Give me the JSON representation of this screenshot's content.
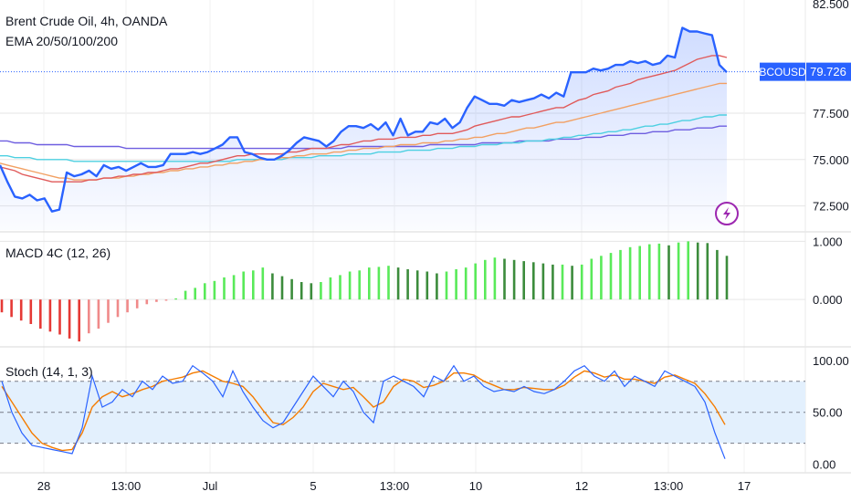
{
  "colors": {
    "price": "#2962ff",
    "ema20": "#e05a5a",
    "ema50": "#f2a062",
    "ema100": "#4dd0e1",
    "ema200": "#6e5ee0",
    "macd_pos_strong": "#59ea59",
    "macd_pos_weak": "#3c8c3c",
    "macd_neg_strong": "#e53935",
    "macd_neg_weak": "#f08a8a",
    "stoch_k": "#2962ff",
    "stoch_d": "#f57c00",
    "stoch_band": "#e3f0fd",
    "lightning": "#9c27b0",
    "grid": "#e6e6e6"
  },
  "chart_data": [
    {
      "type": "area",
      "title": "Brent Crude Oil, 4h, OANDA",
      "subtitle": "EMA 20/50/100/200",
      "ylim": [
        71.2,
        83.5
      ],
      "yticks": [
        "72.500",
        "75.000",
        "77.500"
      ],
      "top_tick_partial": "82.500",
      "last_price": {
        "symbol": "BCOUSD",
        "value": "79.726",
        "y": 79.73
      },
      "icon": "lightning-icon",
      "series": [
        {
          "name": "price",
          "values": [
            74.7,
            73.8,
            73.0,
            72.9,
            73.1,
            72.8,
            72.9,
            72.2,
            72.3,
            74.3,
            74.1,
            74.2,
            74.4,
            74.1,
            74.7,
            74.5,
            74.6,
            74.4,
            74.6,
            74.8,
            74.6,
            74.6,
            74.7,
            75.3,
            75.3,
            75.3,
            75.4,
            75.3,
            75.4,
            75.6,
            75.8,
            76.2,
            76.2,
            75.4,
            75.3,
            75.1,
            75.0,
            75.0,
            75.2,
            75.5,
            75.9,
            76.2,
            76.1,
            76.0,
            75.7,
            76.0,
            76.5,
            76.8,
            76.8,
            76.7,
            76.9,
            76.6,
            77.0,
            76.3,
            77.2,
            76.3,
            76.5,
            76.5,
            77.0,
            76.9,
            77.2,
            76.7,
            77.0,
            77.8,
            78.4,
            78.2,
            78.0,
            78.0,
            77.9,
            78.2,
            78.1,
            78.2,
            78.3,
            78.5,
            78.3,
            78.6,
            78.4,
            79.7,
            79.7,
            79.7,
            79.9,
            79.8,
            79.9,
            80.1,
            80.1,
            80.3,
            80.2,
            80.3,
            80.1,
            80.2,
            80.6,
            80.5,
            82.1,
            81.9,
            81.9,
            81.8,
            81.7,
            80.1,
            79.7
          ]
        },
        {
          "name": "EMA 20",
          "values": [
            74.6,
            74.5,
            74.4,
            74.2,
            74.1,
            74.0,
            73.9,
            73.8,
            73.8,
            73.8,
            73.8,
            73.8,
            73.9,
            73.9,
            74.0,
            74.0,
            74.1,
            74.1,
            74.2,
            74.2,
            74.3,
            74.3,
            74.4,
            74.5,
            74.5,
            74.6,
            74.7,
            74.8,
            74.8,
            74.9,
            75.0,
            75.1,
            75.2,
            75.2,
            75.3,
            75.3,
            75.3,
            75.3,
            75.3,
            75.4,
            75.4,
            75.5,
            75.6,
            75.6,
            75.6,
            75.7,
            75.8,
            75.8,
            75.9,
            76.0,
            76.0,
            76.1,
            76.1,
            76.1,
            76.2,
            76.2,
            76.2,
            76.3,
            76.3,
            76.4,
            76.4,
            76.4,
            76.5,
            76.6,
            76.8,
            76.9,
            77.0,
            77.1,
            77.2,
            77.3,
            77.3,
            77.4,
            77.5,
            77.6,
            77.7,
            77.8,
            77.8,
            78.0,
            78.2,
            78.3,
            78.5,
            78.6,
            78.7,
            78.9,
            79.0,
            79.1,
            79.3,
            79.4,
            79.5,
            79.6,
            79.7,
            79.8,
            80.0,
            80.2,
            80.4,
            80.5,
            80.6,
            80.6,
            80.5
          ]
        },
        {
          "name": "EMA 50",
          "values": [
            74.8,
            74.7,
            74.6,
            74.5,
            74.4,
            74.3,
            74.2,
            74.1,
            74.0,
            74.0,
            73.9,
            73.9,
            73.9,
            73.9,
            74.0,
            74.0,
            74.0,
            74.1,
            74.1,
            74.2,
            74.2,
            74.3,
            74.3,
            74.4,
            74.4,
            74.5,
            74.5,
            74.6,
            74.6,
            74.7,
            74.7,
            74.8,
            74.8,
            74.9,
            74.9,
            75.0,
            75.0,
            75.0,
            75.1,
            75.1,
            75.2,
            75.2,
            75.3,
            75.3,
            75.3,
            75.4,
            75.4,
            75.5,
            75.5,
            75.6,
            75.6,
            75.6,
            75.7,
            75.7,
            75.8,
            75.8,
            75.8,
            75.9,
            75.9,
            75.9,
            76.0,
            76.0,
            76.1,
            76.1,
            76.2,
            76.2,
            76.3,
            76.4,
            76.4,
            76.5,
            76.6,
            76.7,
            76.7,
            76.8,
            76.9,
            77.0,
            77.0,
            77.1,
            77.2,
            77.3,
            77.4,
            77.5,
            77.6,
            77.7,
            77.8,
            77.9,
            78.0,
            78.1,
            78.2,
            78.3,
            78.4,
            78.5,
            78.6,
            78.7,
            78.8,
            78.9,
            79.0,
            79.1,
            79.1
          ]
        },
        {
          "name": "EMA 100",
          "values": [
            75.2,
            75.2,
            75.1,
            75.1,
            75.1,
            75.0,
            75.0,
            75.0,
            75.0,
            75.0,
            74.9,
            74.9,
            74.9,
            74.9,
            74.9,
            74.9,
            74.9,
            74.9,
            74.9,
            74.9,
            74.9,
            74.9,
            74.9,
            74.9,
            74.9,
            74.9,
            74.9,
            74.9,
            74.9,
            74.9,
            74.9,
            74.9,
            75.0,
            75.0,
            75.0,
            75.0,
            75.0,
            75.0,
            75.0,
            75.1,
            75.1,
            75.1,
            75.1,
            75.2,
            75.2,
            75.2,
            75.2,
            75.3,
            75.3,
            75.3,
            75.3,
            75.4,
            75.4,
            75.4,
            75.4,
            75.5,
            75.5,
            75.5,
            75.5,
            75.6,
            75.6,
            75.6,
            75.7,
            75.7,
            75.7,
            75.8,
            75.8,
            75.8,
            75.9,
            75.9,
            75.9,
            76.0,
            76.0,
            76.0,
            76.1,
            76.1,
            76.2,
            76.2,
            76.3,
            76.3,
            76.4,
            76.4,
            76.5,
            76.5,
            76.6,
            76.6,
            76.7,
            76.8,
            76.8,
            76.9,
            76.9,
            77.0,
            77.1,
            77.1,
            77.2,
            77.3,
            77.3,
            77.4,
            77.4
          ]
        },
        {
          "name": "EMA 200",
          "values": [
            76.0,
            76.0,
            75.9,
            75.9,
            75.9,
            75.8,
            75.8,
            75.8,
            75.8,
            75.8,
            75.7,
            75.7,
            75.7,
            75.7,
            75.7,
            75.7,
            75.7,
            75.6,
            75.6,
            75.6,
            75.6,
            75.6,
            75.6,
            75.6,
            75.6,
            75.6,
            75.6,
            75.6,
            75.6,
            75.6,
            75.6,
            75.6,
            75.6,
            75.6,
            75.6,
            75.6,
            75.6,
            75.6,
            75.6,
            75.6,
            75.6,
            75.6,
            75.6,
            75.6,
            75.6,
            75.6,
            75.6,
            75.7,
            75.7,
            75.7,
            75.7,
            75.7,
            75.7,
            75.7,
            75.7,
            75.7,
            75.7,
            75.7,
            75.8,
            75.8,
            75.8,
            75.8,
            75.8,
            75.8,
            75.8,
            75.9,
            75.9,
            75.9,
            75.9,
            75.9,
            76.0,
            76.0,
            76.0,
            76.0,
            76.0,
            76.1,
            76.1,
            76.1,
            76.1,
            76.2,
            76.2,
            76.2,
            76.3,
            76.3,
            76.3,
            76.4,
            76.4,
            76.4,
            76.5,
            76.5,
            76.5,
            76.6,
            76.6,
            76.6,
            76.7,
            76.7,
            76.7,
            76.8,
            76.8
          ]
        }
      ]
    },
    {
      "type": "bar",
      "title": "MACD 4C (12, 26)",
      "ylim": [
        -0.75,
        1.1
      ],
      "yticks": [
        {
          "label": "1.000",
          "v": 1.0
        },
        {
          "label": "0.000",
          "v": 0.0
        }
      ],
      "values": [
        -0.22,
        -0.3,
        -0.36,
        -0.42,
        -0.5,
        -0.55,
        -0.6,
        -0.67,
        -0.72,
        -0.58,
        -0.5,
        -0.4,
        -0.3,
        -0.22,
        -0.15,
        -0.08,
        -0.04,
        -0.02,
        0.02,
        0.15,
        0.2,
        0.28,
        0.32,
        0.38,
        0.42,
        0.48,
        0.5,
        0.55,
        0.45,
        0.4,
        0.35,
        0.3,
        0.28,
        0.3,
        0.38,
        0.42,
        0.48,
        0.5,
        0.55,
        0.56,
        0.58,
        0.55,
        0.52,
        0.5,
        0.48,
        0.45,
        0.48,
        0.52,
        0.55,
        0.62,
        0.68,
        0.72,
        0.7,
        0.68,
        0.66,
        0.64,
        0.62,
        0.6,
        0.6,
        0.58,
        0.6,
        0.7,
        0.75,
        0.8,
        0.85,
        0.9,
        0.92,
        0.95,
        0.96,
        0.93,
        0.98,
        1.0,
        0.98,
        0.97,
        0.85,
        0.75
      ]
    },
    {
      "type": "line",
      "title": "Stoch (14, 1, 3)",
      "ylim": [
        -5,
        108
      ],
      "yticks": [
        {
          "label": "100.00",
          "v": 100
        },
        {
          "label": "50.00",
          "v": 50
        },
        {
          "label": "0.00",
          "v": 0
        }
      ],
      "bands": [
        20,
        50,
        80
      ],
      "series": [
        {
          "name": "%K",
          "values": [
            80,
            50,
            30,
            18,
            16,
            14,
            12,
            10,
            35,
            85,
            55,
            60,
            72,
            65,
            80,
            72,
            85,
            78,
            80,
            95,
            88,
            80,
            65,
            90,
            70,
            55,
            42,
            35,
            40,
            55,
            70,
            85,
            75,
            65,
            80,
            70,
            50,
            40,
            80,
            85,
            80,
            75,
            65,
            85,
            80,
            95,
            80,
            85,
            75,
            70,
            72,
            70,
            75,
            70,
            68,
            72,
            80,
            90,
            95,
            85,
            80,
            90,
            75,
            85,
            80,
            75,
            90,
            85,
            80,
            75,
            60,
            30,
            5
          ]
        },
        {
          "name": "%D",
          "values": [
            75,
            60,
            45,
            30,
            20,
            16,
            13,
            14,
            30,
            55,
            65,
            70,
            65,
            68,
            72,
            75,
            80,
            82,
            84,
            88,
            90,
            85,
            80,
            78,
            75,
            65,
            52,
            40,
            38,
            45,
            55,
            70,
            78,
            75,
            72,
            74,
            65,
            55,
            60,
            75,
            82,
            80,
            74,
            76,
            80,
            88,
            88,
            86,
            80,
            76,
            72,
            72,
            74,
            73,
            72,
            72,
            76,
            84,
            90,
            88,
            84,
            86,
            82,
            82,
            80,
            78,
            84,
            86,
            82,
            78,
            68,
            55,
            38
          ]
        }
      ]
    }
  ],
  "x_axis": {
    "labels": [
      {
        "text": "28",
        "x": 48
      },
      {
        "text": "13:00",
        "x": 138
      },
      {
        "text": "Jul",
        "x": 230
      },
      {
        "text": "5",
        "x": 343
      },
      {
        "text": "13:00",
        "x": 432
      },
      {
        "text": "10",
        "x": 521
      },
      {
        "text": "12",
        "x": 637
      },
      {
        "text": "13:00",
        "x": 732
      },
      {
        "text": "17",
        "x": 815
      }
    ]
  }
}
